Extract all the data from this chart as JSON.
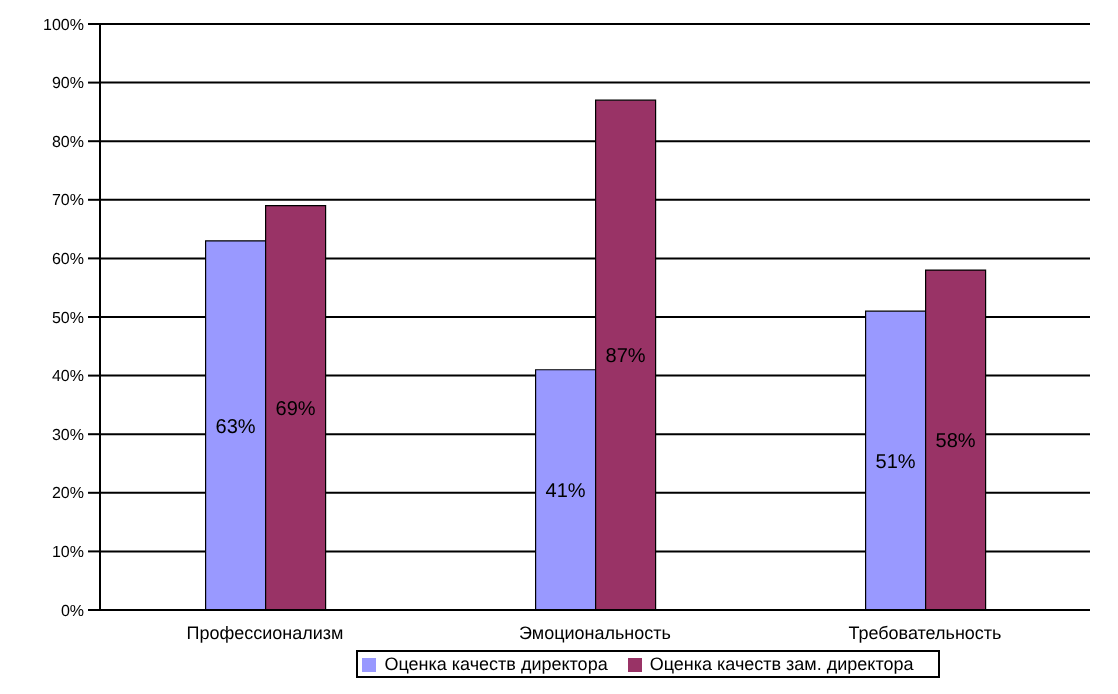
{
  "chart_data": {
    "type": "bar",
    "categories": [
      "Профессионализм",
      "Эмоциональность",
      "Требовательность"
    ],
    "series": [
      {
        "name": "Оценка качеств директора",
        "color": "#9999ff",
        "values": [
          63,
          41,
          51
        ],
        "value_labels": [
          "63%",
          "41%",
          "51%"
        ]
      },
      {
        "name": "Оценка качеств зам. директора",
        "color": "#993366",
        "values": [
          69,
          87,
          58
        ],
        "value_labels": [
          "69%",
          "87%",
          "58%"
        ]
      }
    ],
    "ylim": [
      0,
      100
    ],
    "yticks": [
      {
        "value": 0,
        "label": "0%"
      },
      {
        "value": 10,
        "label": "10%"
      },
      {
        "value": 20,
        "label": "20%"
      },
      {
        "value": 30,
        "label": "30%"
      },
      {
        "value": 40,
        "label": "40%"
      },
      {
        "value": 50,
        "label": "50%"
      },
      {
        "value": 60,
        "label": "60%"
      },
      {
        "value": 70,
        "label": "70%"
      },
      {
        "value": 80,
        "label": "80%"
      },
      {
        "value": 90,
        "label": "90%"
      },
      {
        "value": 100,
        "label": "100%"
      }
    ],
    "grid": "y",
    "legend": "bottom"
  }
}
